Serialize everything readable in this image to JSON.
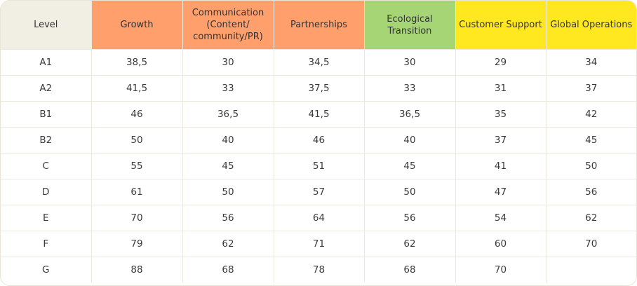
{
  "table": {
    "headers": [
      {
        "label": "Level",
        "bg": "#f1efe3"
      },
      {
        "label": "Growth",
        "bg": "#ff9f6b"
      },
      {
        "label": "Communication\n(Content/\ncommunity/PR)",
        "bg": "#ff9f6b"
      },
      {
        "label": "Partnerships",
        "bg": "#ff9f6b"
      },
      {
        "label": "Ecological\nTransition",
        "bg": "#a6d575"
      },
      {
        "label": "Customer Support",
        "bg": "#ffe81f"
      },
      {
        "label": "Global Operations",
        "bg": "#ffe81f"
      }
    ],
    "rows": [
      [
        "A1",
        "38,5",
        "30",
        "34,5",
        "30",
        "29",
        "34"
      ],
      [
        "A2",
        "41,5",
        "33",
        "37,5",
        "33",
        "31",
        "37"
      ],
      [
        "B1",
        "46",
        "36,5",
        "41,5",
        "36,5",
        "35",
        "42"
      ],
      [
        "B2",
        "50",
        "40",
        "46",
        "40",
        "37",
        "45"
      ],
      [
        "C",
        "55",
        "45",
        "51",
        "45",
        "41",
        "50"
      ],
      [
        "D",
        "61",
        "50",
        "57",
        "50",
        "47",
        "56"
      ],
      [
        "E",
        "70",
        "56",
        "64",
        "56",
        "54",
        "62"
      ],
      [
        "F",
        "79",
        "62",
        "71",
        "62",
        "60",
        "70"
      ],
      [
        "G",
        "88",
        "68",
        "78",
        "68",
        "70",
        ""
      ]
    ]
  }
}
